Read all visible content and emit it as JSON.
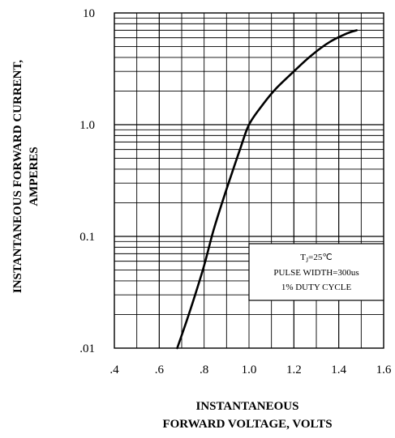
{
  "chart_data": {
    "type": "line",
    "xlabel_lines": [
      "INSTANTANEOUS",
      "FORWARD VOLTAGE, VOLTS"
    ],
    "ylabel_lines": [
      "INSTANTANEOUS FORWARD CURRENT,",
      "AMPERES"
    ],
    "x_scale": "linear",
    "y_scale": "log",
    "xlim": [
      0.4,
      1.6
    ],
    "ylim": [
      0.01,
      10
    ],
    "x_ticks": [
      ".4",
      ".6",
      ".8",
      "1.0",
      "1.2",
      "1.4",
      "1.6"
    ],
    "y_ticks": [
      ".01",
      "0.1",
      "1.0",
      "10"
    ],
    "grid": true,
    "legend_position": "bottom-right",
    "legend": {
      "line1_main": "T",
      "line1_sub": "J",
      "line1_rest": "=25℃",
      "line2": "PULSE WIDTH=300us",
      "line3": "1% DUTY CYCLE"
    },
    "series": [
      {
        "x": [
          0.68,
          0.72,
          0.76,
          0.8,
          0.84,
          0.88,
          0.92,
          0.96,
          1.0,
          1.06,
          1.12,
          1.2,
          1.28,
          1.36,
          1.44,
          1.48
        ],
        "y": [
          0.01,
          0.017,
          0.03,
          0.055,
          0.11,
          0.2,
          0.35,
          0.6,
          1.0,
          1.5,
          2.1,
          3.0,
          4.2,
          5.5,
          6.6,
          7.0
        ]
      }
    ],
    "colors": {
      "line": "#000000",
      "grid": "#000000",
      "background": "#ffffff"
    }
  }
}
